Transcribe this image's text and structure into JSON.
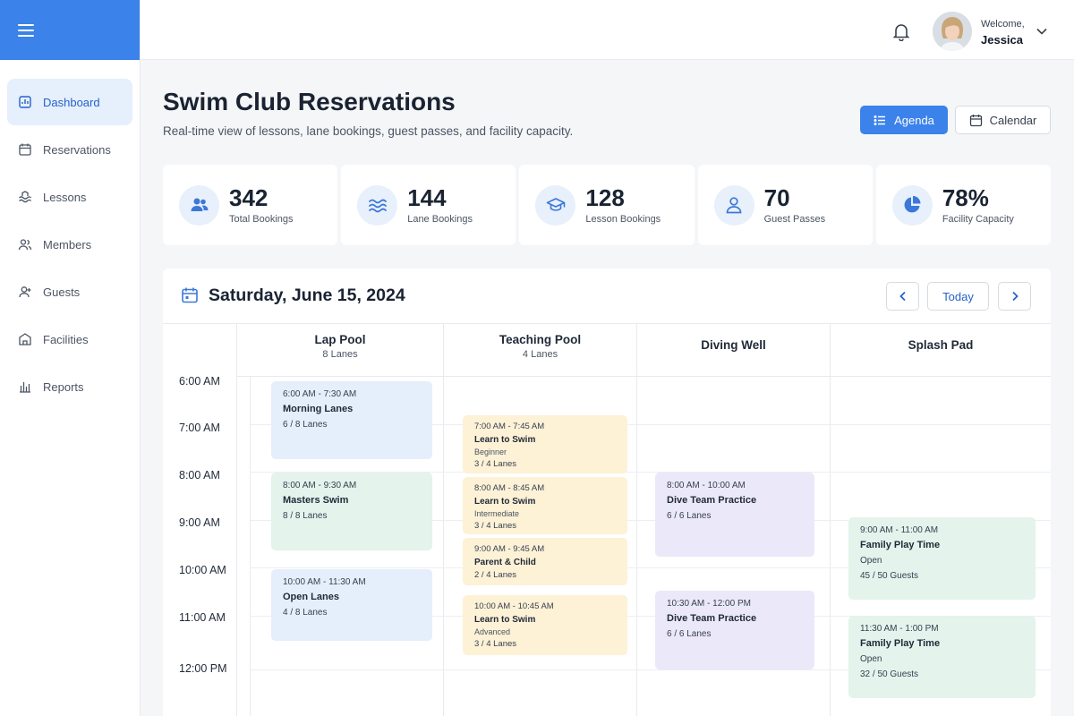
{
  "sidebar": {
    "items": [
      {
        "label": "Dashboard",
        "icon": "dashboard-icon"
      },
      {
        "label": "Reservations",
        "icon": "calendar-icon"
      },
      {
        "label": "Lessons",
        "icon": "lessons-icon"
      },
      {
        "label": "Members",
        "icon": "members-icon"
      },
      {
        "label": "Guests",
        "icon": "guests-icon"
      },
      {
        "label": "Facilities",
        "icon": "facilities-icon"
      },
      {
        "label": "Reports",
        "icon": "reports-icon"
      }
    ]
  },
  "topbar": {
    "welcome": "Welcome,",
    "user": "Jessica"
  },
  "header": {
    "title": "Swim Club Reservations",
    "subtitle": "Real-time view of lessons, lane bookings, guest passes, and facility capacity.",
    "agenda_label": "Agenda",
    "calendar_label": "Calendar"
  },
  "stats": [
    {
      "value": "342",
      "label": "Total Bookings",
      "icon": "people-icon"
    },
    {
      "value": "144",
      "label": "Lane Bookings",
      "icon": "waves-icon"
    },
    {
      "value": "128",
      "label": "Lesson Bookings",
      "icon": "graduation-cap-icon"
    },
    {
      "value": "70",
      "label": "Guest Passes",
      "icon": "person-icon"
    },
    {
      "value": "78%",
      "label": "Facility Capacity",
      "icon": "pie-chart-icon"
    }
  ],
  "schedule": {
    "date": "Saturday, June 15, 2024",
    "today_label": "Today",
    "columns": [
      {
        "name": "Lap Pool",
        "sub": "8 Lanes"
      },
      {
        "name": "Teaching Pool",
        "sub": "4 Lanes"
      },
      {
        "name": "Diving Well",
        "sub": ""
      },
      {
        "name": "Splash Pad",
        "sub": ""
      }
    ],
    "times": [
      "6:00 AM",
      "7:00 AM",
      "8:00 AM",
      "9:00 AM",
      "10:00 AM",
      "11:00 AM",
      "12:00 PM"
    ],
    "events": {
      "lap1": {
        "time": "6:00 AM - 7:30 AM",
        "name": "Morning Lanes",
        "meta": "6 / 8 Lanes"
      },
      "lap2": {
        "time": "8:00 AM - 9:30 AM",
        "name": "Masters Swim",
        "meta": "8 / 8 Lanes"
      },
      "lap3": {
        "time": "10:00 AM - 11:30 AM",
        "name": "Open Lanes",
        "meta": "4 / 8 Lanes"
      },
      "teach1": {
        "time": "7:00 AM - 7:45 AM",
        "name": "Learn to Swim",
        "level": "Beginner",
        "meta": "3 / 4 Lanes"
      },
      "teach2": {
        "time": "8:00 AM - 8:45 AM",
        "name": "Learn to Swim",
        "level": "Intermediate",
        "meta": "3 / 4 Lanes"
      },
      "teach3": {
        "time": "9:00 AM - 9:45 AM",
        "name": "Parent & Child",
        "meta": "2 / 4 Lanes"
      },
      "teach4": {
        "time": "10:00 AM - 10:45 AM",
        "name": "Learn to Swim",
        "level": "Advanced",
        "meta": "3 / 4 Lanes"
      },
      "dive1": {
        "time": "8:00 AM - 10:00 AM",
        "name": "Dive Team Practice",
        "meta": "6 / 6 Lanes"
      },
      "dive2": {
        "time": "10:30 AM - 12:00 PM",
        "name": "Dive Team Practice",
        "meta": "6 / 6 Lanes"
      },
      "splash1": {
        "time": "9:00 AM - 11:00 AM",
        "name": "Family Play Time",
        "status": "Open",
        "meta": "45 / 50 Guests"
      },
      "splash2": {
        "time": "11:30 AM - 1:00 PM",
        "name": "Family Play Time",
        "status": "Open",
        "meta": "32 / 50 Guests"
      }
    }
  }
}
